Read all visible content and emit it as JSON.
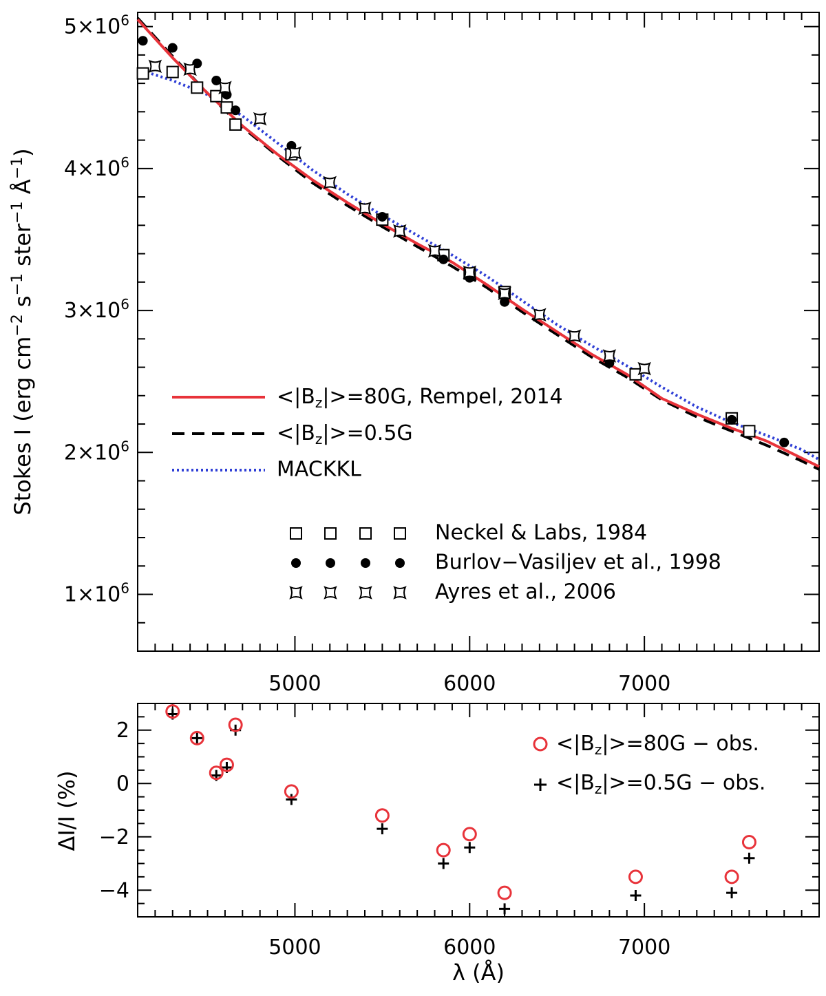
{
  "chart_data": [
    {
      "type": "line",
      "panel": "top",
      "xlim": [
        4100,
        8000
      ],
      "ylim": [
        600000,
        5100000
      ],
      "grid": false,
      "ylabel": {
        "prefix": "Stokes I (erg cm",
        "sup1": "−2",
        "mid1": " s",
        "sup2": "−1",
        "mid2": " ster",
        "sup3": "−1",
        "mid3": " Å",
        "sup4": "−1",
        "suffix": ")"
      },
      "x_ticks": [
        5000,
        6000,
        7000
      ],
      "x_tick_labels": [
        "5000",
        "6000",
        "7000"
      ],
      "y_ticks": [
        1000000,
        2000000,
        3000000,
        4000000,
        5000000
      ],
      "y_tick_labels": [
        {
          "base": "1×10",
          "exp": "6"
        },
        {
          "base": "2×10",
          "exp": "6"
        },
        {
          "base": "3×10",
          "exp": "6"
        },
        {
          "base": "4×10",
          "exp": "6"
        },
        {
          "base": "5×10",
          "exp": "6"
        }
      ],
      "series": [
        {
          "name": "<|Bz|>=80G, Rempel, 2014",
          "label": {
            "pre": "<|B",
            "sub": "z",
            "post": "|>=80G, Rempel, 2014"
          },
          "style": "solid",
          "color": "#e8333a",
          "x": [
            4100,
            4300,
            4500,
            4700,
            4900,
            5100,
            5300,
            5500,
            5700,
            5900,
            6100,
            6300,
            6500,
            6700,
            6900,
            7100,
            7300,
            7500,
            7700,
            7900,
            8000
          ],
          "y": [
            5050000,
            4780000,
            4530000,
            4300000,
            4100000,
            3920000,
            3760000,
            3610000,
            3470000,
            3340000,
            3180000,
            3010000,
            2850000,
            2690000,
            2550000,
            2380000,
            2270000,
            2170000,
            2080000,
            1960000,
            1900000
          ]
        },
        {
          "name": "<|Bz|>=0.5G",
          "label": {
            "pre": "<|B",
            "sub": "z",
            "post": "|>=0.5G"
          },
          "style": "dashed",
          "color": "#000000",
          "x": [
            4100,
            4300,
            4500,
            4700,
            4900,
            5100,
            5300,
            5500,
            5700,
            5900,
            6100,
            6300,
            6500,
            6700,
            6900,
            7100,
            7300,
            7500,
            7700,
            7900,
            8000
          ],
          "y": [
            5060000,
            4790000,
            4530000,
            4290000,
            4090000,
            3900000,
            3740000,
            3590000,
            3450000,
            3310000,
            3160000,
            2990000,
            2830000,
            2670000,
            2530000,
            2370000,
            2250000,
            2150000,
            2050000,
            1940000,
            1880000
          ]
        },
        {
          "name": "MACKKL",
          "label": {
            "pre": "MACKKL",
            "sub": "",
            "post": ""
          },
          "style": "dotted",
          "color": "#2f3fd6",
          "x": [
            4100,
            4300,
            4500,
            4700,
            4900,
            5100,
            5300,
            5500,
            5700,
            5900,
            6100,
            6300,
            6500,
            6700,
            6900,
            7100,
            7300,
            7500,
            7700,
            7900,
            8000
          ],
          "y": [
            4700000,
            4620000,
            4520000,
            4370000,
            4180000,
            3990000,
            3820000,
            3670000,
            3530000,
            3390000,
            3240000,
            3070000,
            2900000,
            2750000,
            2610000,
            2460000,
            2320000,
            2210000,
            2120000,
            2020000,
            1950000
          ]
        }
      ],
      "points": [
        {
          "name": "Neckel & Labs, 1984",
          "marker": "square",
          "x": [
            4130,
            4300,
            4440,
            4550,
            4610,
            4660,
            4980,
            5500,
            5850,
            6000,
            6200,
            6950,
            7500,
            7600
          ],
          "y": [
            4670000,
            4680000,
            4570000,
            4510000,
            4430000,
            4310000,
            4100000,
            3640000,
            3390000,
            3260000,
            3130000,
            2550000,
            2240000,
            2150000
          ]
        },
        {
          "name": "Burlov−Vasiljev et al., 1998",
          "marker": "circle",
          "x": [
            4130,
            4300,
            4440,
            4550,
            4610,
            4660,
            4980,
            5500,
            5850,
            6000,
            6200,
            6800,
            7500,
            7800
          ],
          "y": [
            4900000,
            4850000,
            4740000,
            4620000,
            4520000,
            4410000,
            4160000,
            3660000,
            3360000,
            3230000,
            3060000,
            2630000,
            2230000,
            2070000
          ]
        },
        {
          "name": "Ayres et al., 2006",
          "marker": "star",
          "x": [
            4200,
            4400,
            4600,
            4800,
            5000,
            5200,
            5400,
            5600,
            5800,
            6000,
            6200,
            6400,
            6600,
            6800,
            7000
          ],
          "y": [
            4720000,
            4700000,
            4570000,
            4350000,
            4110000,
            3900000,
            3720000,
            3560000,
            3420000,
            3270000,
            3120000,
            2970000,
            2820000,
            2680000,
            2590000
          ]
        }
      ]
    },
    {
      "type": "scatter",
      "panel": "bottom",
      "xlim": [
        4100,
        8000
      ],
      "ylim": [
        -5,
        3
      ],
      "grid": false,
      "xlabel": "λ (Å)",
      "ylabel": "ΔI/I (%)",
      "x_ticks": [
        5000,
        6000,
        7000
      ],
      "x_tick_labels": [
        "5000",
        "6000",
        "7000"
      ],
      "y_ticks": [
        -4,
        -2,
        0,
        2
      ],
      "y_tick_labels": [
        "−4",
        "−2",
        "0",
        "2"
      ],
      "series": [
        {
          "name": "<|Bz|>=80G − obs.",
          "label": {
            "pre": "<|B",
            "sub": "z",
            "post": "|>=80G − obs."
          },
          "marker": "open-circle",
          "color": "#e8333a",
          "x": [
            4300,
            4440,
            4550,
            4610,
            4660,
            4980,
            5500,
            5850,
            6000,
            6200,
            6950,
            7500,
            7600
          ],
          "y": [
            2.7,
            1.7,
            0.4,
            0.7,
            2.2,
            -0.3,
            -1.2,
            -2.5,
            -1.9,
            -4.1,
            -3.5,
            -3.5,
            -2.2
          ]
        },
        {
          "name": "<|Bz|>=0.5G − obs.",
          "label": {
            "pre": "<|B",
            "sub": "z",
            "post": "|>=0.5G − obs."
          },
          "marker": "plus",
          "color": "#000000",
          "x": [
            4300,
            4440,
            4550,
            4610,
            4660,
            4980,
            5500,
            5850,
            6000,
            6200,
            6950,
            7500,
            7600
          ],
          "y": [
            2.6,
            1.7,
            0.3,
            0.6,
            2.0,
            -0.6,
            -1.7,
            -3.0,
            -2.4,
            -4.7,
            -4.2,
            -4.1,
            -2.8
          ]
        }
      ]
    }
  ]
}
